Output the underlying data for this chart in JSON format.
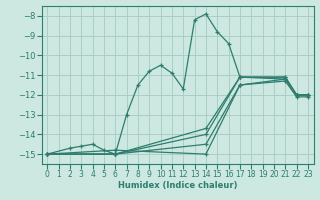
{
  "xlabel": "Humidex (Indice chaleur)",
  "bg_color": "#cce8e0",
  "line_color": "#2e7d6e",
  "grid_color": "#aacfc7",
  "xlim": [
    -0.5,
    23.5
  ],
  "ylim": [
    -15.5,
    -7.5
  ],
  "xticks": [
    0,
    1,
    2,
    3,
    4,
    5,
    6,
    7,
    8,
    9,
    10,
    11,
    12,
    13,
    14,
    15,
    16,
    17,
    18,
    19,
    20,
    21,
    22,
    23
  ],
  "yticks": [
    -15,
    -14,
    -13,
    -12,
    -11,
    -10,
    -9,
    -8
  ],
  "lines": [
    {
      "x": [
        0,
        2,
        3,
        4,
        5,
        6,
        7,
        8,
        9,
        10,
        11,
        12,
        13,
        14,
        15,
        16,
        17,
        21,
        22,
        23
      ],
      "y": [
        -15.0,
        -14.7,
        -14.6,
        -14.5,
        -14.8,
        -15.0,
        -13.0,
        -11.5,
        -10.8,
        -10.5,
        -10.9,
        -11.7,
        -8.2,
        -7.9,
        -8.8,
        -9.4,
        -11.1,
        -11.2,
        -12.0,
        -12.0
      ]
    },
    {
      "x": [
        0,
        6,
        14,
        17,
        21,
        22,
        23
      ],
      "y": [
        -15.0,
        -15.0,
        -13.7,
        -11.1,
        -11.1,
        -12.0,
        -12.0
      ]
    },
    {
      "x": [
        0,
        6,
        14,
        17,
        21,
        22,
        23
      ],
      "y": [
        -15.0,
        -15.0,
        -14.0,
        -11.1,
        -11.1,
        -12.0,
        -12.0
      ]
    },
    {
      "x": [
        0,
        6,
        14,
        17,
        21,
        22,
        23
      ],
      "y": [
        -15.0,
        -15.0,
        -14.5,
        -11.5,
        -11.2,
        -12.0,
        -12.0
      ]
    },
    {
      "x": [
        0,
        6,
        14,
        17,
        21,
        22,
        23
      ],
      "y": [
        -15.0,
        -14.8,
        -15.0,
        -11.5,
        -11.3,
        -12.1,
        -12.1
      ]
    }
  ]
}
